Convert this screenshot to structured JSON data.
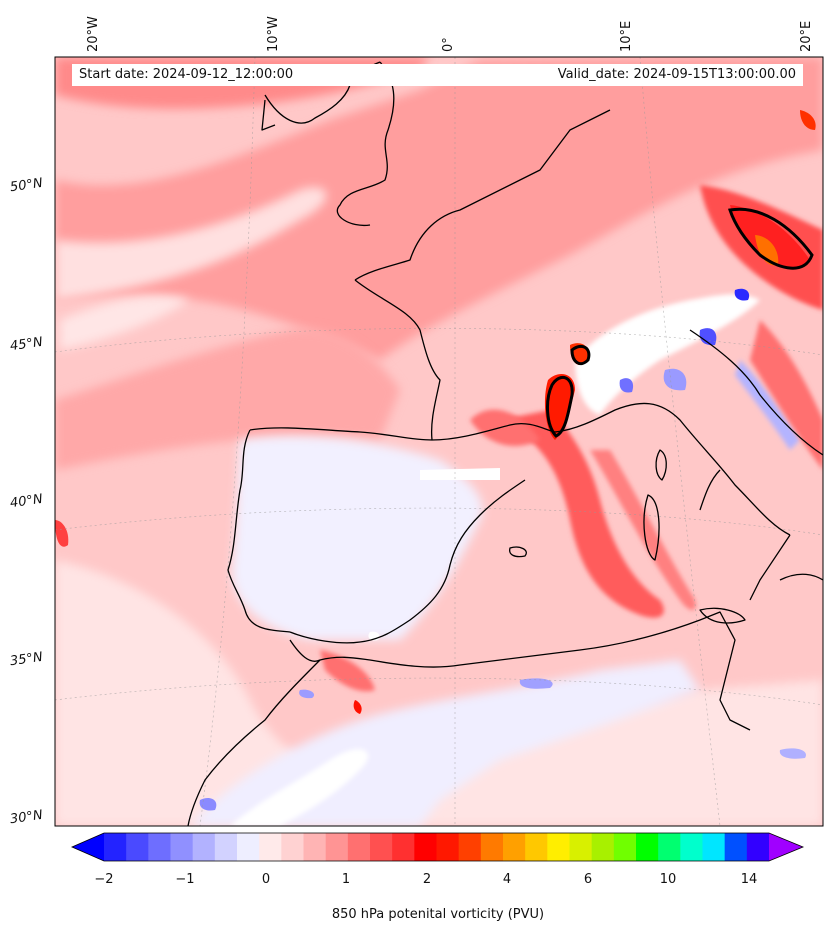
{
  "header": {
    "start_date": "Start date: 2024-09-12_12:00:00",
    "valid_date": "Valid_date: 2024-09-15T13:00:00.00"
  },
  "longitude_labels": [
    "20°W",
    "10°W",
    "0°",
    "10°E",
    "20°E"
  ],
  "latitude_labels": [
    "50°N",
    "45°N",
    "40°N",
    "35°N",
    "30°N"
  ],
  "colorbar": {
    "title": "850 hPa potenital vorticity (PVU)",
    "ticks": [
      "−2",
      "−1",
      "0",
      "1",
      "2",
      "4",
      "6",
      "10",
      "14"
    ],
    "colors": [
      "#0000ff",
      "#2323ff",
      "#4a4aff",
      "#6e6eff",
      "#9090ff",
      "#b2b2ff",
      "#d2d2ff",
      "#eeeeff",
      "#ffeaea",
      "#ffd2d2",
      "#ffb4b4",
      "#ff9494",
      "#ff7070",
      "#ff5050",
      "#ff3030",
      "#ff0000",
      "#ff1800",
      "#ff4000",
      "#ff7a00",
      "#ffa000",
      "#ffc800",
      "#ffee00",
      "#d8f000",
      "#a8f000",
      "#70ff00",
      "#00ff00",
      "#00ff70",
      "#00ffcc",
      "#00e6ff",
      "#0050ff",
      "#3200ff",
      "#a000ff"
    ]
  },
  "colors": {
    "background": "#ffffff",
    "coast": "#000000"
  }
}
